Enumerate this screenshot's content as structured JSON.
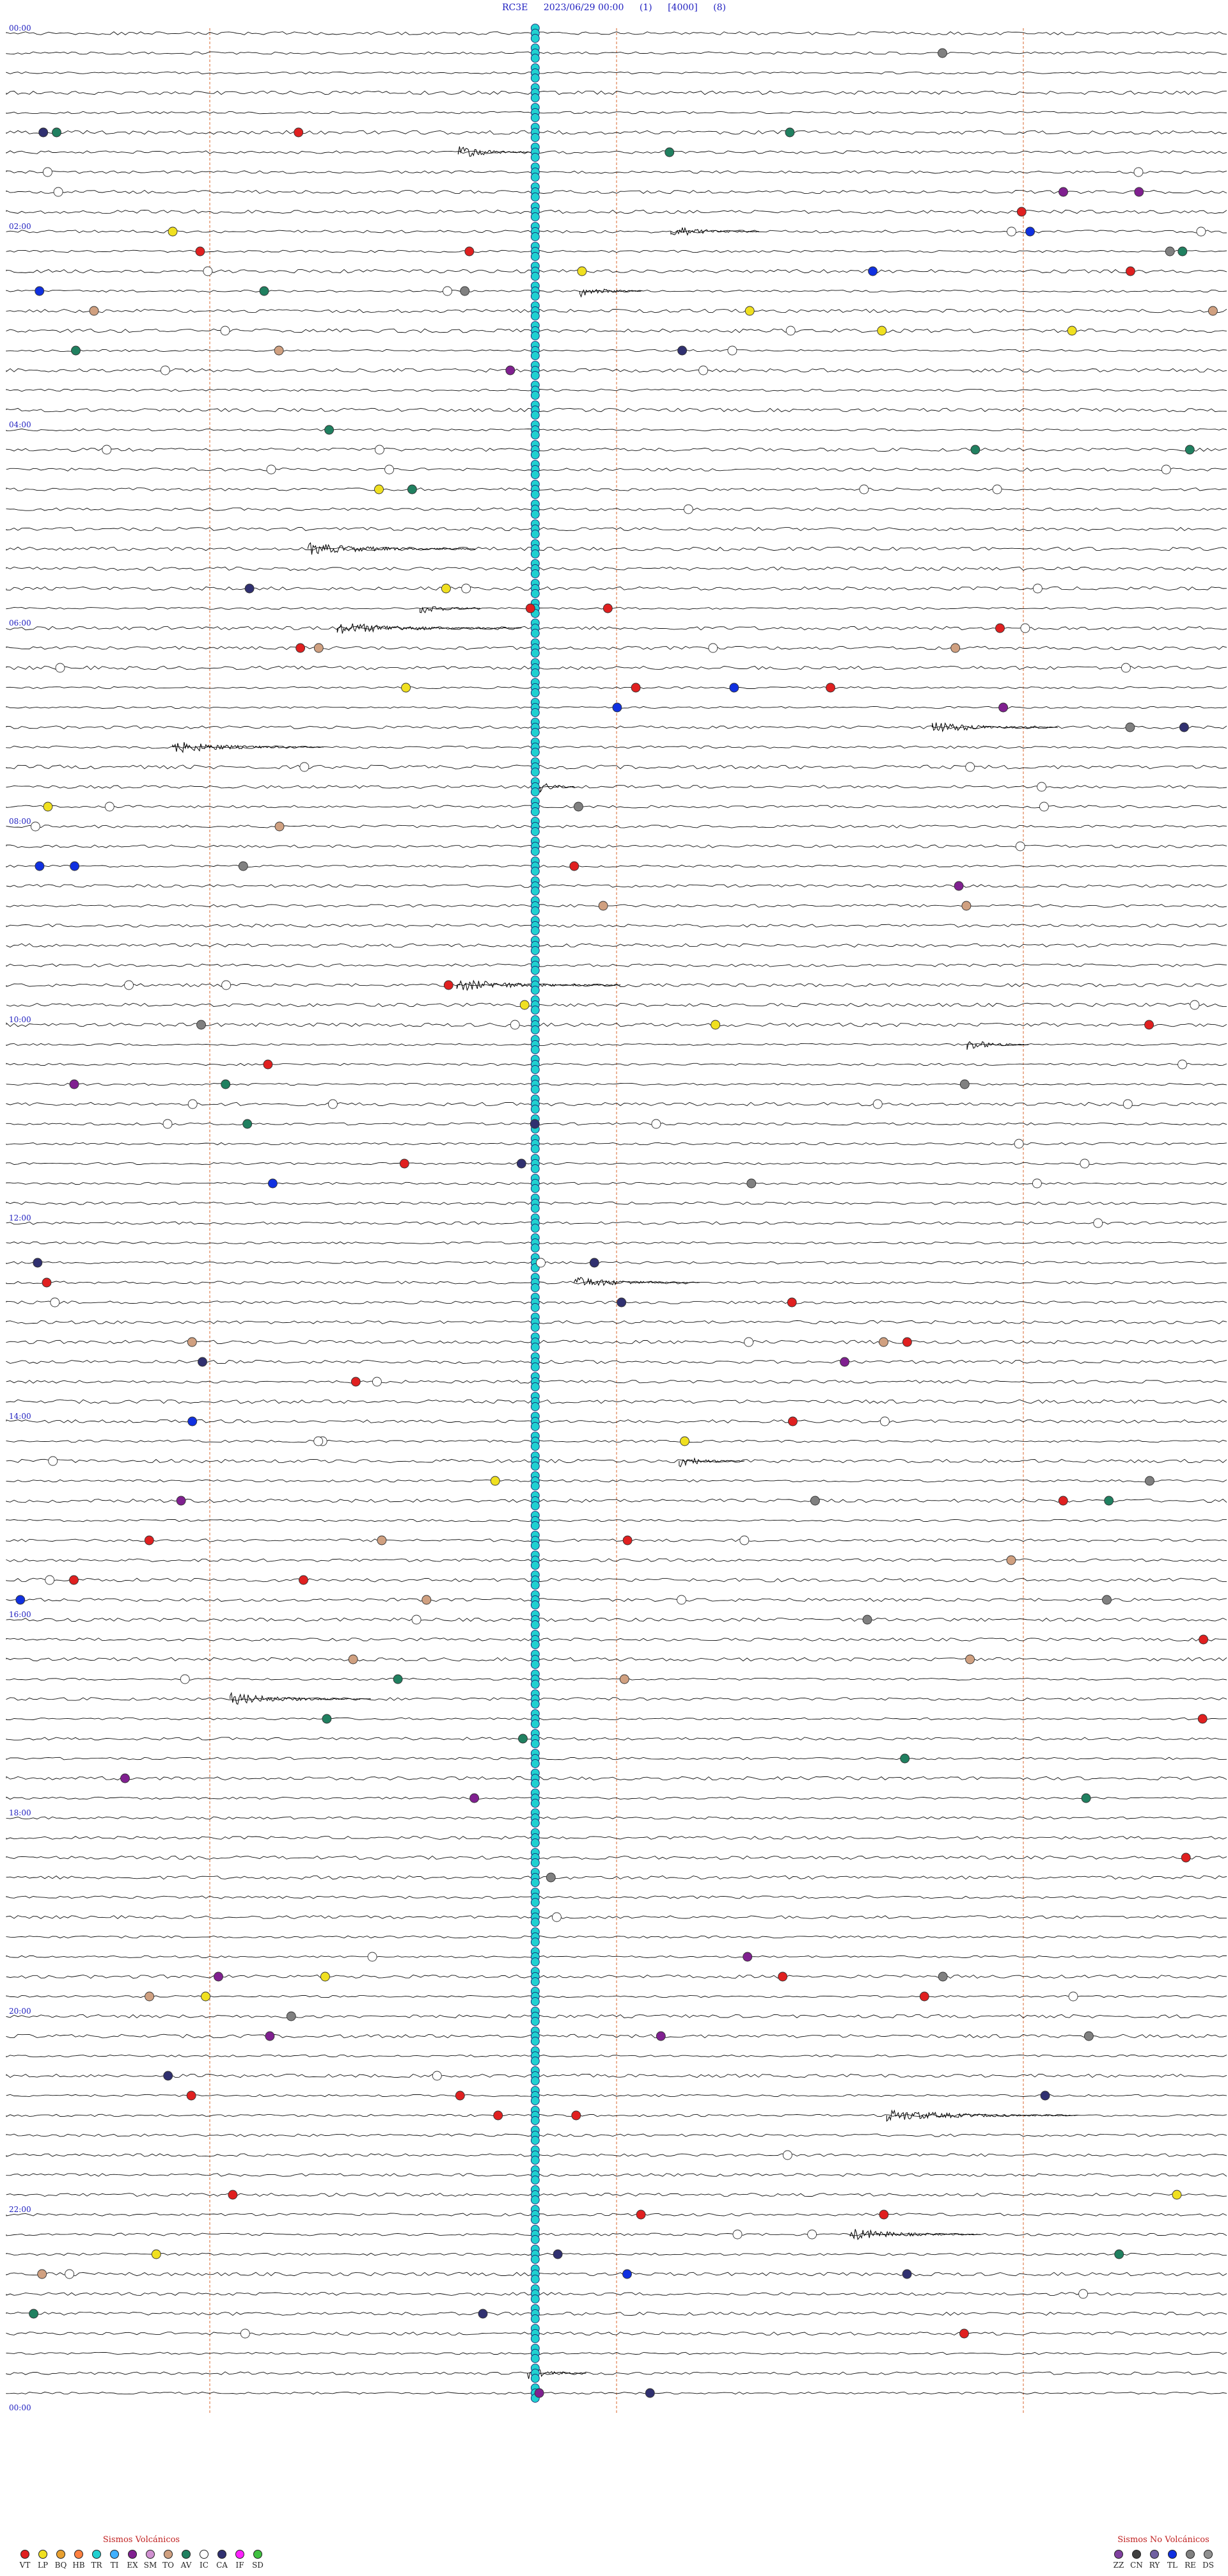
{
  "header": {
    "station": "RC3E",
    "datetime": "2023/06/29 00:00",
    "channel": "(1)",
    "gain": "[4000]",
    "mode": "(8)"
  },
  "chart_data": {
    "type": "helicorder",
    "rows": 120,
    "minutes_per_row": 12,
    "time_labels": [
      "00:00",
      "02:00",
      "04:00",
      "06:00",
      "08:00",
      "10:00",
      "12:00",
      "14:00",
      "16:00",
      "18:00",
      "20:00",
      "22:00",
      "00:00"
    ],
    "event_marker_colors": {
      "VT": "#e02020",
      "LP": "#f0e020",
      "BQ": "#e8a030",
      "HB": "#ff8040",
      "TR": "#20d0d0",
      "TI": "#40b0ff",
      "EX": "#802090",
      "SM": "#d090d0",
      "TO": "#d0a080",
      "AV": "#208060",
      "IC": "#ffffff",
      "CA": "#303070",
      "IF": "#ff20ff",
      "SD": "#40c040",
      "ZZ": "#8040a0",
      "CN": "#404040",
      "RY": "#7060a0",
      "TL": "#1030e0",
      "RE": "#808080",
      "DS": "#909090"
    },
    "dashed_minute_marks": [
      2,
      6,
      10
    ]
  },
  "legend": {
    "volcanic_title": "Sismos Volcánicos",
    "volcanic": [
      {
        "code": "VT",
        "color": "#e02020"
      },
      {
        "code": "LP",
        "color": "#f0e020"
      },
      {
        "code": "BQ",
        "color": "#e8a030"
      },
      {
        "code": "HB",
        "color": "#ff8040"
      },
      {
        "code": "TR",
        "color": "#20d0d0"
      },
      {
        "code": "TI",
        "color": "#40b0ff"
      },
      {
        "code": "EX",
        "color": "#802090"
      },
      {
        "code": "SM",
        "color": "#d090d0"
      },
      {
        "code": "TO",
        "color": "#d0a080"
      },
      {
        "code": "AV",
        "color": "#208060"
      },
      {
        "code": "IC",
        "color": "#ffffff"
      },
      {
        "code": "CA",
        "color": "#303070"
      },
      {
        "code": "IF",
        "color": "#ff20ff"
      },
      {
        "code": "SD",
        "color": "#40c040"
      }
    ],
    "non_volcanic_title": "Sismos No Volcánicos",
    "non_volcanic": [
      {
        "code": "ZZ",
        "color": "#8040a0"
      },
      {
        "code": "CN",
        "color": "#404040"
      },
      {
        "code": "RY",
        "color": "#7060a0"
      },
      {
        "code": "TL",
        "color": "#1030e0"
      },
      {
        "code": "RE",
        "color": "#808080"
      },
      {
        "code": "DS",
        "color": "#909090"
      }
    ]
  }
}
